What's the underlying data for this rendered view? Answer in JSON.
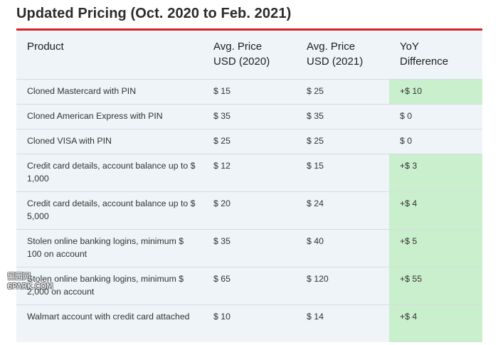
{
  "title": "Updated Pricing (Oct. 2020 to Feb. 2021)",
  "table": {
    "headers": {
      "product": "Product",
      "price_2020_line1": "Avg. Price",
      "price_2020_line2": "USD (2020)",
      "price_2021_line1": "Avg. Price",
      "price_2021_line2": "USD (2021)",
      "yoy_line1": "YoY",
      "yoy_line2": "Difference"
    },
    "rows": [
      {
        "product": "Cloned Mastercard with PIN",
        "price_2020": "$ 15",
        "price_2021": "$ 25",
        "yoy": "+$ 10",
        "yoy_status": "increase"
      },
      {
        "product": "Cloned American Express with PIN",
        "price_2020": "$ 35",
        "price_2021": "$ 35",
        "yoy": "$ 0",
        "yoy_status": "none"
      },
      {
        "product": "Cloned VISA with PIN",
        "price_2020": "$ 25",
        "price_2021": "$ 25",
        "yoy": "$ 0",
        "yoy_status": "none"
      },
      {
        "product": "Credit card details, account balance up to $ 1,000",
        "price_2020": "$ 12",
        "price_2021": "$ 15",
        "yoy": "+$ 3",
        "yoy_status": "increase"
      },
      {
        "product": "Credit card details, account balance up to $ 5,000",
        "price_2020": "$ 20",
        "price_2021": "$ 24",
        "yoy": "+$ 4",
        "yoy_status": "increase"
      },
      {
        "product": "Stolen online banking logins, minimum $ 100 on account",
        "price_2020": "$ 35",
        "price_2021": "$ 40",
        "yoy": "+$ 5",
        "yoy_status": "increase"
      },
      {
        "product": "Stolen online banking logins, minimum $ 2,000 on account",
        "price_2020": "$ 65",
        "price_2021": "$ 120",
        "yoy": "+$ 55",
        "yoy_status": "increase"
      },
      {
        "product": "Walmart account with credit card attached",
        "price_2020": "$ 10",
        "price_2021": "$ 14",
        "yoy": "+$ 4",
        "yoy_status": "increase"
      }
    ]
  },
  "colors": {
    "accent_rule": "#d3222a",
    "table_background": "#eef4f7",
    "increase_highlight": "#c9efcc"
  },
  "watermark": {
    "line1": "留园网",
    "line2": "6PARK.COM"
  }
}
